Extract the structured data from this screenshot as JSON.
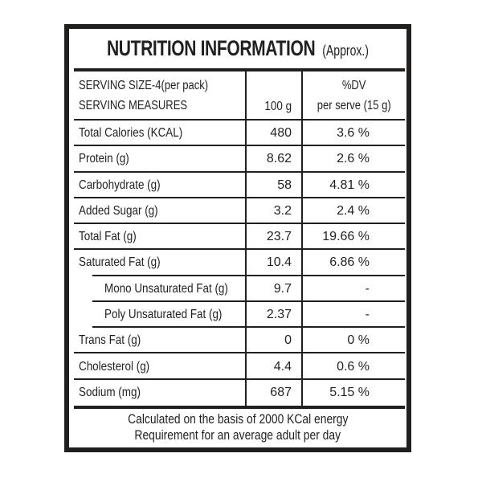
{
  "title": {
    "main": "NUTRITION INFORMATION",
    "suffix": "(Approx.)"
  },
  "header": {
    "serving_size": "SERVING SIZE-4(per pack)",
    "serving_measures": "SERVING MEASURES",
    "amount_col": "100 g",
    "dv_line1": "%DV",
    "dv_line2": "per serve (15 g)"
  },
  "rows": [
    {
      "label": "Total Calories (KCAL)",
      "per_100g": "480",
      "dv_percent": "3.6 %",
      "sub": false
    },
    {
      "label": "Protein (g)",
      "per_100g": "8.62",
      "dv_percent": "2.6 %",
      "sub": false
    },
    {
      "label": "Carbohydrate (g)",
      "per_100g": "58",
      "dv_percent": "4.81 %",
      "sub": false
    },
    {
      "label": "Added Sugar (g)",
      "per_100g": "3.2",
      "dv_percent": "2.4 %",
      "sub": false
    },
    {
      "label": "Total Fat (g)",
      "per_100g": "23.7",
      "dv_percent": "19.66 %",
      "sub": false
    },
    {
      "label": "Saturated Fat (g)",
      "per_100g": "10.4",
      "dv_percent": "6.86 %",
      "sub": false
    },
    {
      "label": "Mono Unsaturated Fat (g)",
      "per_100g": "9.7",
      "dv_percent": "-",
      "sub": true
    },
    {
      "label": "Poly Unsaturated Fat (g)",
      "per_100g": "2.37",
      "dv_percent": "-",
      "sub": true
    },
    {
      "label": "Trans Fat (g)",
      "per_100g": "0",
      "dv_percent": "0 %",
      "sub": false
    },
    {
      "label": "Cholesterol (g)",
      "per_100g": "4.4",
      "dv_percent": "0.6 %",
      "sub": false
    },
    {
      "label": "Sodium (mg)",
      "per_100g": "687",
      "dv_percent": "5.15 %",
      "sub": false
    }
  ],
  "footer": {
    "line1": "Calculated on the basis of 2000 KCal energy",
    "line2": "Requirement for an average adult per day"
  },
  "colors": {
    "ink": "#221f1f",
    "background": "#ffffff"
  }
}
